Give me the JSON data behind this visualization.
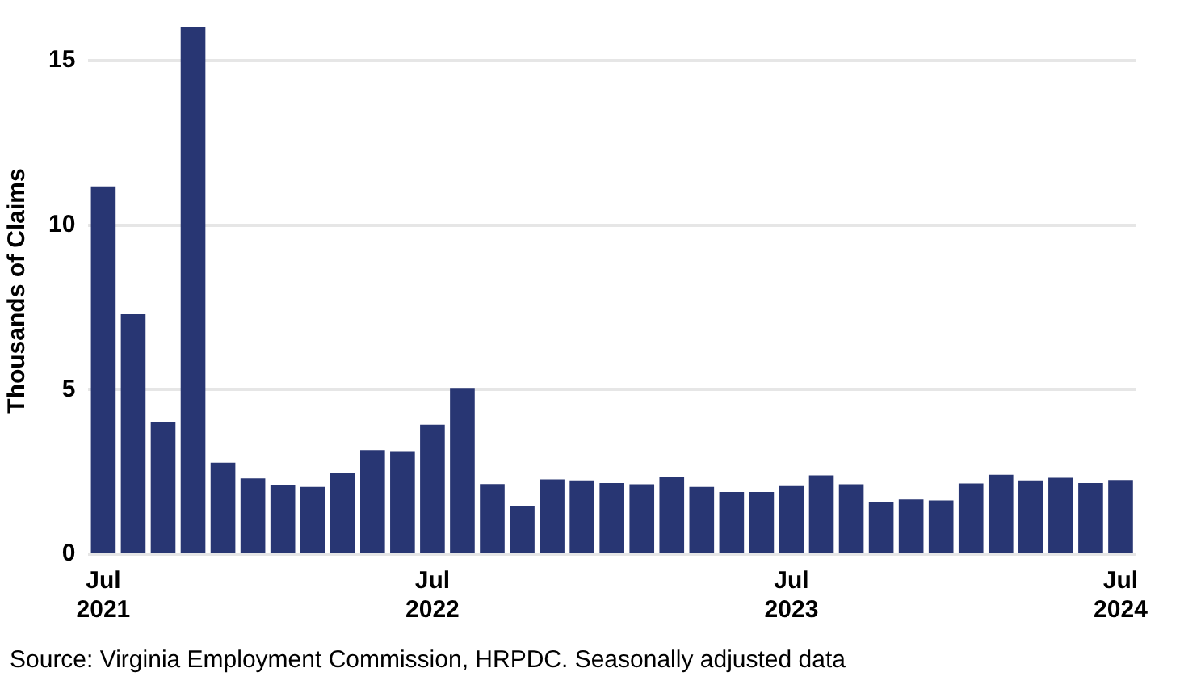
{
  "chart_data": {
    "type": "bar",
    "ylabel": "Thousands of Claims",
    "categories": [
      "Jul\n2021",
      null,
      null,
      null,
      null,
      null,
      null,
      null,
      null,
      null,
      null,
      "Jul\n2022",
      null,
      null,
      null,
      null,
      null,
      null,
      null,
      null,
      null,
      null,
      null,
      "Jul\n2023",
      null,
      null,
      null,
      null,
      null,
      null,
      null,
      null,
      null,
      null,
      "Jul\n2024"
    ],
    "values": [
      11.17,
      7.29,
      4.0,
      16,
      2.78,
      2.3,
      2.09,
      2.04,
      2.48,
      3.16,
      3.13,
      3.93,
      5.05,
      2.13,
      1.47,
      2.27,
      2.24,
      2.16,
      2.12,
      2.33,
      2.04,
      1.89,
      1.89,
      2.07,
      2.39,
      2.12,
      1.58,
      1.66,
      1.63,
      2.15,
      2.41,
      2.24,
      2.32,
      2.16,
      2.25
    ],
    "color": "#283673",
    "ylim": [
      0,
      16
    ],
    "yticks": [
      0,
      5,
      10,
      15
    ],
    "grid": "y",
    "legend": false,
    "annotations": [
      "Source: Virginia Employment Commission, HRPDC. Seasonally adjusted data"
    ]
  }
}
